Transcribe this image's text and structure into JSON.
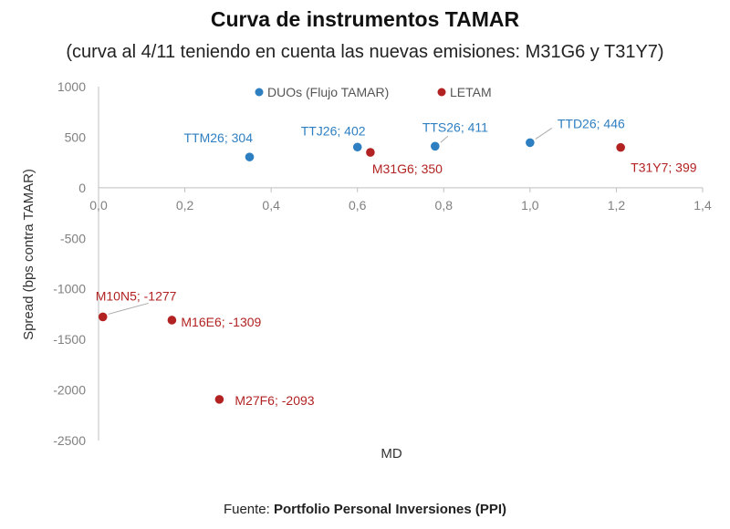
{
  "chart_data": {
    "type": "scatter",
    "title": "Curva de instrumentos TAMAR",
    "subtitle": "(curva al 4/11 teniendo en cuenta las nuevas emisiones: M31G6 y T31Y7)",
    "xlabel": "MD",
    "ylabel": "Spread (bps contra TAMAR)",
    "xlim": [
      0,
      1.4
    ],
    "ylim": [
      -2500,
      1000
    ],
    "x_ticks": [
      "0,0",
      "0,2",
      "0,4",
      "0,6",
      "0,8",
      "1,0",
      "1,2",
      "1,4"
    ],
    "y_ticks": [
      "1000",
      "500",
      "0",
      "-500",
      "-1000",
      "-1500",
      "-2000",
      "-2500"
    ],
    "legend_position": "top-center",
    "series": [
      {
        "name": "DUOs (Flujo TAMAR)",
        "color": "#2e7fc1",
        "points": [
          {
            "x": 0.35,
            "y": 304,
            "label": "TTM26; 304"
          },
          {
            "x": 0.6,
            "y": 402,
            "label": "TTJ26; 402"
          },
          {
            "x": 0.78,
            "y": 411,
            "label": "TTS26; 411"
          },
          {
            "x": 1.0,
            "y": 446,
            "label": "TTD26; 446"
          }
        ]
      },
      {
        "name": "LETAM",
        "color": "#b22222",
        "points": [
          {
            "x": 0.63,
            "y": 350,
            "label": "M31G6; 350"
          },
          {
            "x": 1.21,
            "y": 399,
            "label": "T31Y7; 399"
          },
          {
            "x": 0.01,
            "y": -1277,
            "label": "M10N5; -1277"
          },
          {
            "x": 0.17,
            "y": -1309,
            "label": "M16E6; -1309"
          },
          {
            "x": 0.28,
            "y": -2093,
            "label": "M27F6; -2093"
          }
        ]
      }
    ]
  },
  "source": {
    "prefix": "Fuente: ",
    "name": "Portfolio Personal Inversiones (PPI)"
  }
}
